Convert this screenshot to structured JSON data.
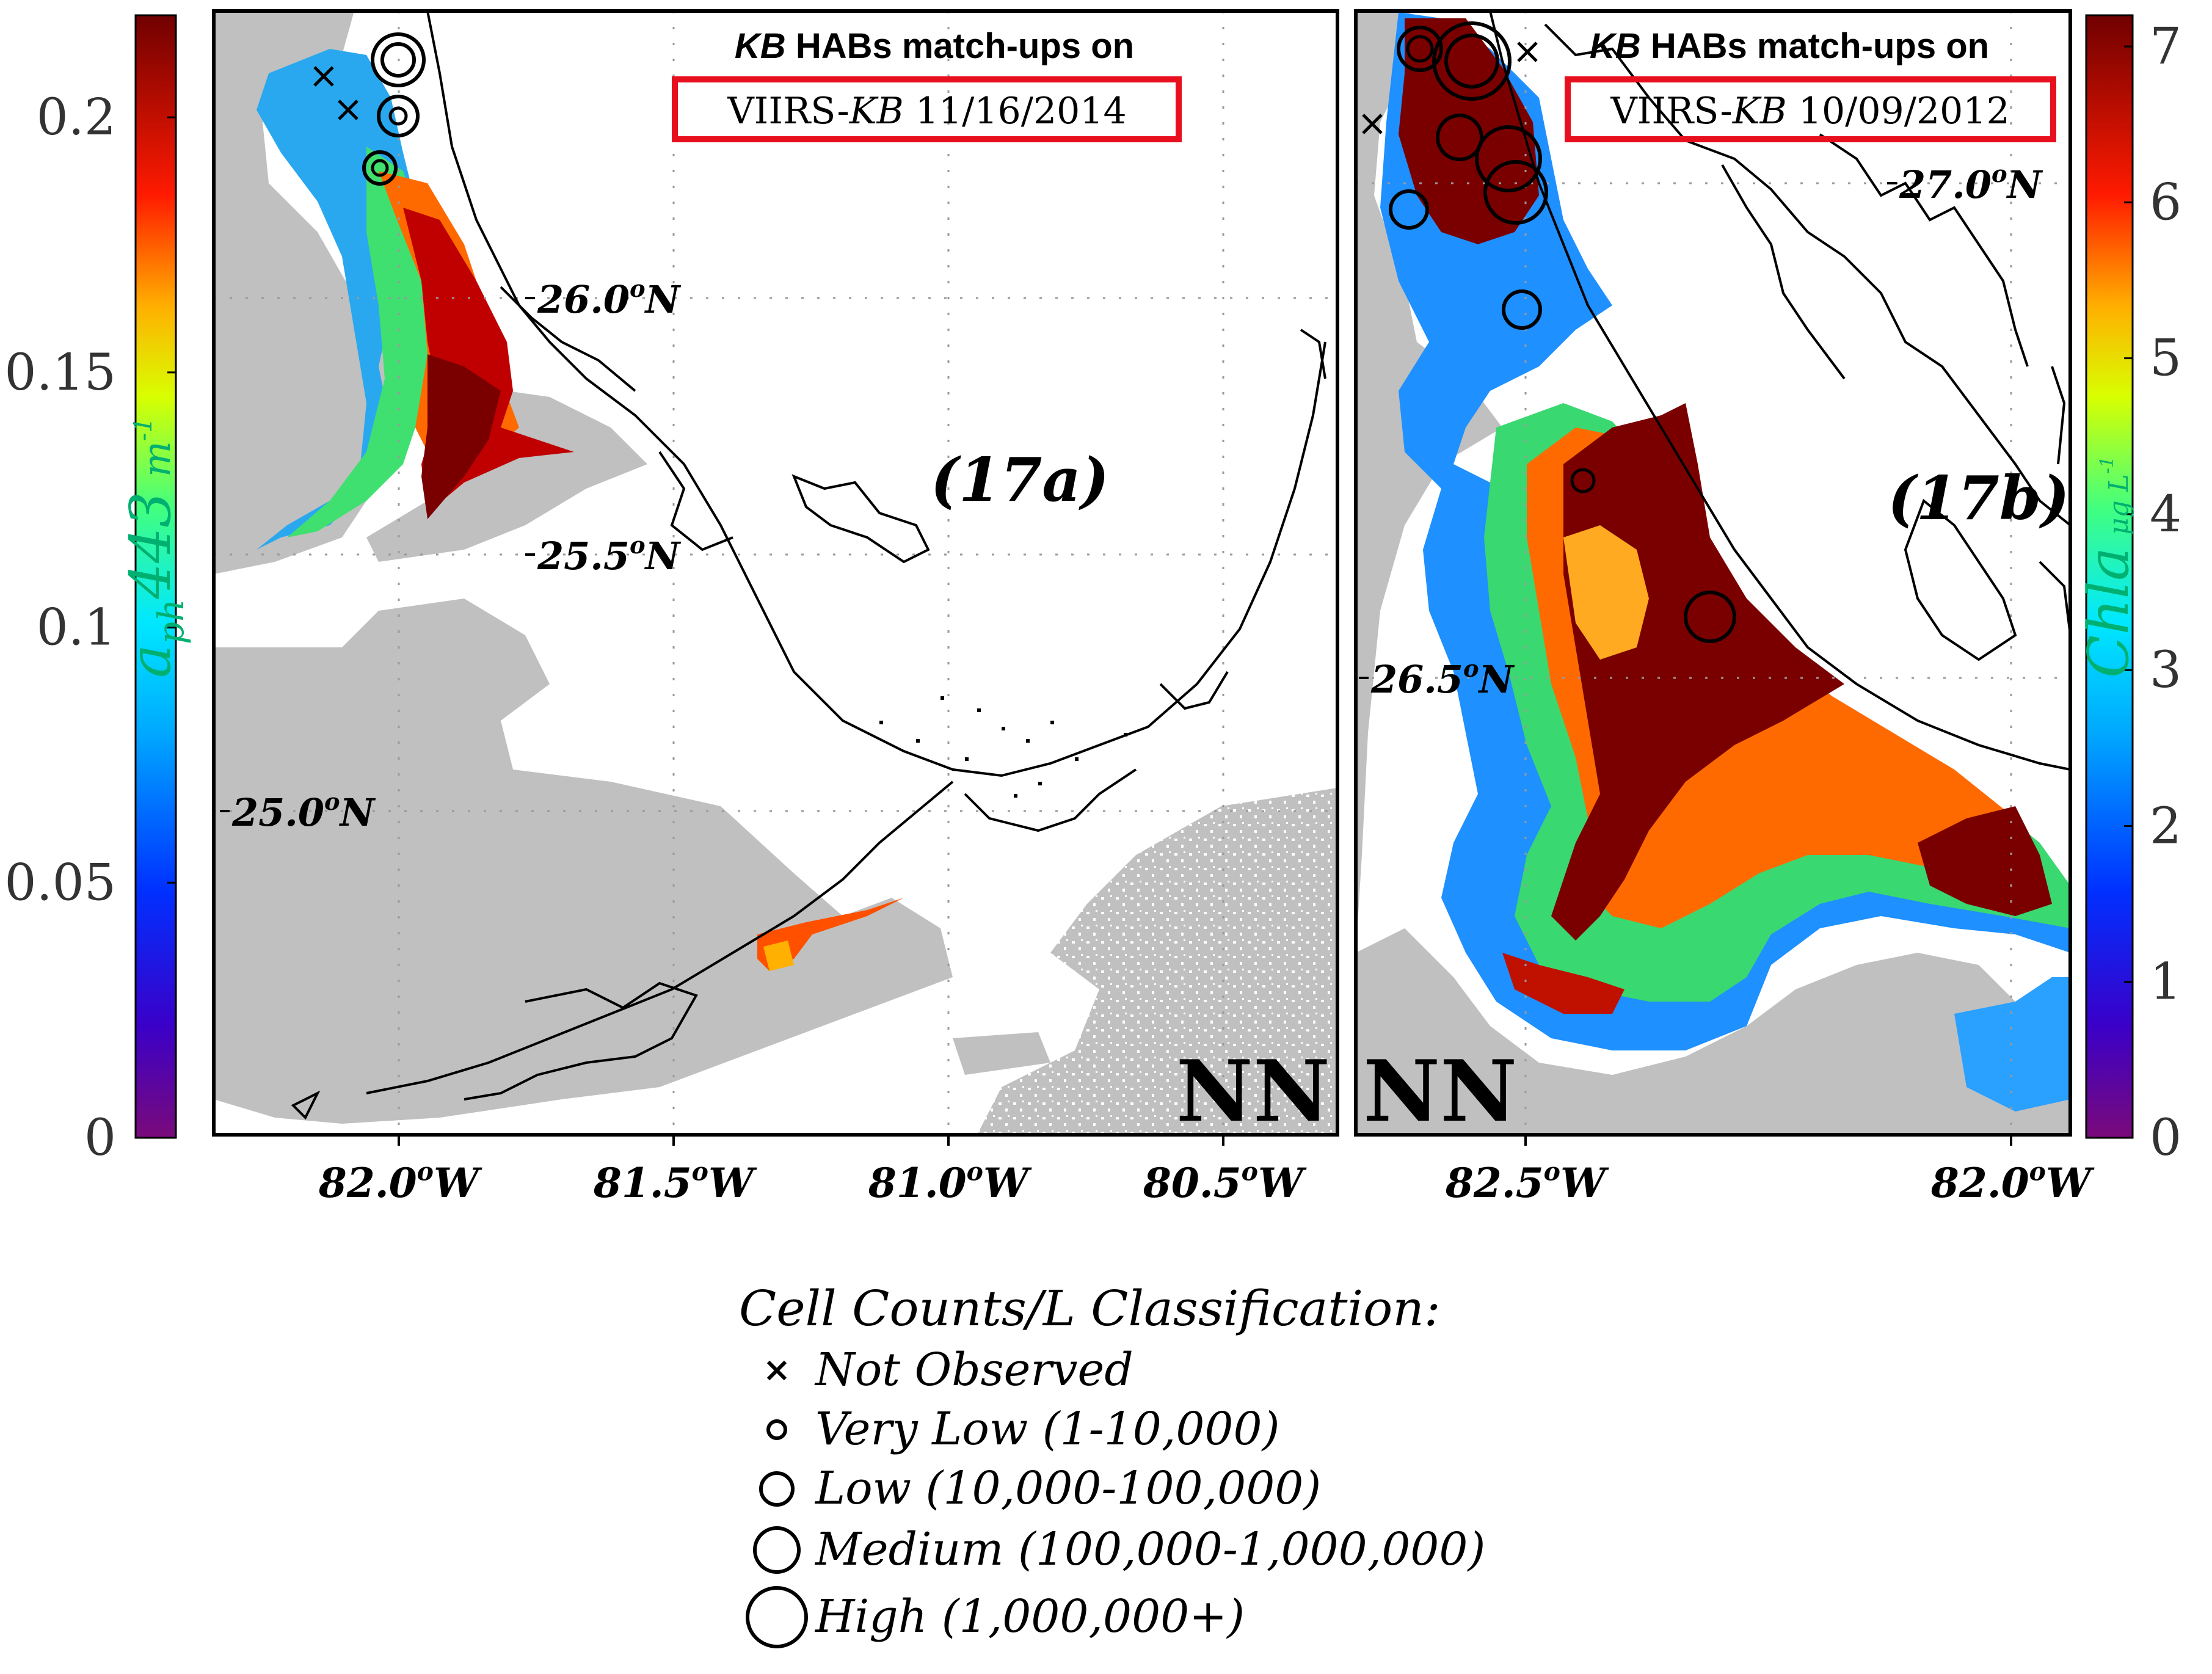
{
  "colorbar_left": {
    "label_main": "a",
    "label_sub": "ph",
    "label_tail": "443",
    "label_unit": "m",
    "label_exp": "-1",
    "ticks": [
      "0.2",
      "0.15",
      "0.1",
      "0.05",
      "0"
    ],
    "tick_values": [
      0.2,
      0.15,
      0.1,
      0.05,
      0
    ],
    "range": [
      0,
      0.22
    ]
  },
  "colorbar_right": {
    "label_main": "Chla",
    "label_unit": "μg L",
    "label_exp": "-1",
    "ticks": [
      "7",
      "6",
      "5",
      "4",
      "3",
      "2",
      "1",
      "0"
    ],
    "tick_values": [
      7,
      6,
      5,
      4,
      3,
      2,
      1,
      0
    ],
    "range": [
      0,
      7.2
    ]
  },
  "panel_a": {
    "id_label": "(17a)",
    "title_italic": "KB",
    "title_rest": " HABs match-ups on",
    "date_prefix": "VIIRS-",
    "date_italic": "KB",
    "date_rest": " 11/16/2014",
    "lat_labels": [
      {
        "deg": "26.0",
        "hem": "N",
        "lat": 26.0
      },
      {
        "deg": "25.5",
        "hem": "N",
        "lat": 25.5
      },
      {
        "deg": "25.0",
        "hem": "N",
        "lat": 25.0
      }
    ],
    "lon_labels": [
      {
        "deg": "82.0",
        "hem": "W",
        "lon": -82.0
      },
      {
        "deg": "81.5",
        "hem": "W",
        "lon": -81.5
      },
      {
        "deg": "81.0",
        "hem": "W",
        "lon": -81.0
      },
      {
        "deg": "80.5",
        "hem": "W",
        "lon": -80.5
      }
    ],
    "corner_mark": "NN"
  },
  "panel_b": {
    "id_label": "(17b)",
    "title_italic": "KB",
    "title_rest": " HABs match-ups on",
    "date_prefix": "VIIRS-",
    "date_italic": "KB",
    "date_rest": " 10/09/2012",
    "lat_labels": [
      {
        "deg": "27.0",
        "hem": "N",
        "lat": 27.0
      },
      {
        "deg": "26.5",
        "hem": "N",
        "lat": 26.5
      }
    ],
    "lon_labels": [
      {
        "deg": "82.5",
        "hem": "W",
        "lon": -82.5
      },
      {
        "deg": "82.0",
        "hem": "W",
        "lon": -82.0
      }
    ],
    "corner_mark": "NN"
  },
  "degree_symbol": "o",
  "legend": {
    "title": "Cell Counts/L Classification:",
    "items": [
      {
        "symbol": "x",
        "label": "Not Observed"
      },
      {
        "symbol": "circle-very-low",
        "label": "Very Low (1-10,000)"
      },
      {
        "symbol": "circle-low",
        "label": "Low (10,000-100,000)"
      },
      {
        "symbol": "circle-medium",
        "label": "Medium (100,000-1,000,000)"
      },
      {
        "symbol": "circle-high",
        "label": "High (1,000,000+)"
      }
    ]
  },
  "colors": {
    "land_nodata": "#c0c0c0",
    "frame": "#000000",
    "highlight_box": "#e8101e",
    "bloom_high": "#7a0000",
    "bloom_mid": "#ff3000",
    "bloom_low": "#1e90ff"
  }
}
